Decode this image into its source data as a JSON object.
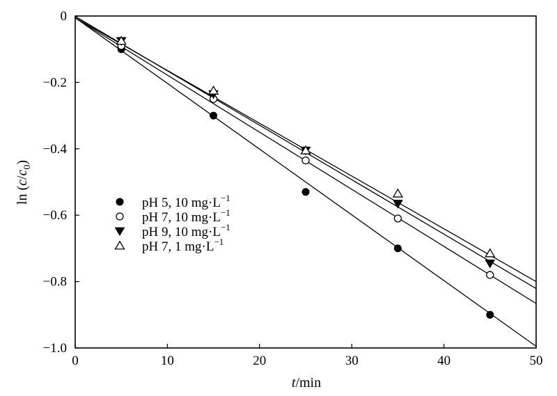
{
  "chart_data": {
    "type": "scatter",
    "title": "",
    "xlabel": {
      "italic": "t",
      "rest": "/min"
    },
    "ylabel": {
      "prefix": "ln (",
      "c": "c",
      "slash": "/",
      "c0": "c",
      "sub": "0",
      "suffix": ")"
    },
    "xlim": [
      0,
      50
    ],
    "ylim": [
      -1.0,
      0
    ],
    "xticks": [
      0,
      10,
      20,
      30,
      40,
      50
    ],
    "yticks": [
      0,
      -0.2,
      -0.4,
      -0.6,
      -0.8,
      -1.0
    ],
    "xtick_labels": [
      "0",
      "10",
      "20",
      "30",
      "40",
      "50"
    ],
    "ytick_labels": [
      "0",
      "−0.2",
      "−0.4",
      "−0.6",
      "−0.8",
      "−1.0"
    ],
    "grid": false,
    "legend_position": "center-left",
    "series": [
      {
        "name": "pH 5,  10 mg·L",
        "name_sup": "−1",
        "marker": "filled-circle",
        "x": [
          5,
          15,
          25,
          35,
          45
        ],
        "y": [
          -0.1,
          -0.3,
          -0.53,
          -0.7,
          -0.9
        ],
        "fit": {
          "slope": -0.0198,
          "intercept": -0.005
        }
      },
      {
        "name": "pH 7,  10 mg·L",
        "name_sup": "−1",
        "marker": "open-circle",
        "x": [
          5,
          15,
          25,
          35,
          45
        ],
        "y": [
          -0.09,
          -0.25,
          -0.435,
          -0.61,
          -0.78
        ],
        "fit": {
          "slope": -0.0172,
          "intercept": -0.006
        }
      },
      {
        "name": "pH 9,  10 mg·L",
        "name_sup": "−1",
        "marker": "filled-triangle-down",
        "x": [
          5,
          15,
          25,
          35,
          45
        ],
        "y": [
          -0.075,
          -0.235,
          -0.405,
          -0.565,
          -0.745
        ],
        "fit": {
          "slope": -0.0164,
          "intercept": -0.001
        }
      },
      {
        "name": "pH 7,  1 mg·L",
        "name_sup": "−1",
        "marker": "open-triangle-up",
        "x": [
          5,
          15,
          25,
          35,
          45
        ],
        "y": [
          -0.075,
          -0.225,
          -0.405,
          -0.535,
          -0.715
        ],
        "fit": {
          "slope": -0.0159,
          "intercept": -0.005
        }
      }
    ]
  }
}
